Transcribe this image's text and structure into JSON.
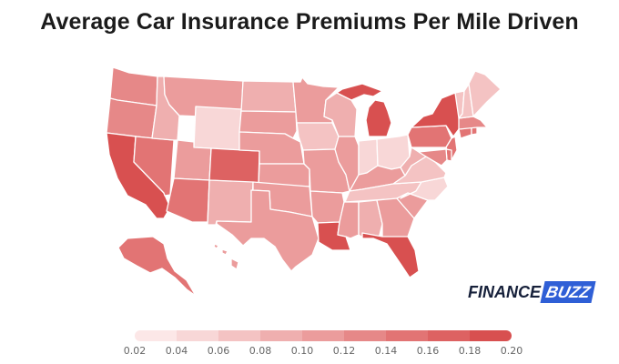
{
  "title": "Average Car Insurance Premiums Per Mile Driven",
  "logo": {
    "word1": "FINANCE",
    "word2": "BUZZ"
  },
  "legend": {
    "ticks": [
      "0.02",
      "0.04",
      "0.06",
      "0.08",
      "0.10",
      "0.12",
      "0.14",
      "0.16",
      "0.18",
      "0.20"
    ],
    "colors": [
      "#fce7e7",
      "#f8d7d7",
      "#f4c3c3",
      "#efafaf",
      "#eb9c9c",
      "#e68888",
      "#e27474",
      "#dd6262",
      "#d85050"
    ]
  },
  "map_data": {
    "metric": "premium per mile driven",
    "states": {
      "WA": 0.13,
      "OR": 0.13,
      "CA": 0.18,
      "NV": 0.15,
      "ID": 0.09,
      "MT": 0.11,
      "WY": 0.06,
      "UT": 0.1,
      "AZ": 0.14,
      "CO": 0.16,
      "NM": 0.09,
      "ND": 0.09,
      "SD": 0.11,
      "NE": 0.12,
      "KS": 0.12,
      "OK": 0.1,
      "TX": 0.12,
      "MN": 0.12,
      "IA": 0.08,
      "MO": 0.12,
      "AR": 0.11,
      "LA": 0.19,
      "WI": 0.09,
      "IL": 0.12,
      "MI": 0.19,
      "IN": 0.06,
      "OH": 0.05,
      "KY": 0.12,
      "TN": 0.08,
      "MS": 0.11,
      "AL": 0.09,
      "GA": 0.12,
      "FL": 0.19,
      "SC": 0.11,
      "NC": 0.06,
      "VA": 0.07,
      "WV": 0.09,
      "PA": 0.14,
      "NY": 0.19,
      "ME": 0.08,
      "NH": 0.08,
      "VT": 0.08,
      "MA": 0.13,
      "RI": 0.15,
      "CT": 0.14,
      "NJ": 0.15,
      "DE": 0.14,
      "MD": 0.13,
      "AK": 0.14,
      "HI": 0.1
    }
  }
}
